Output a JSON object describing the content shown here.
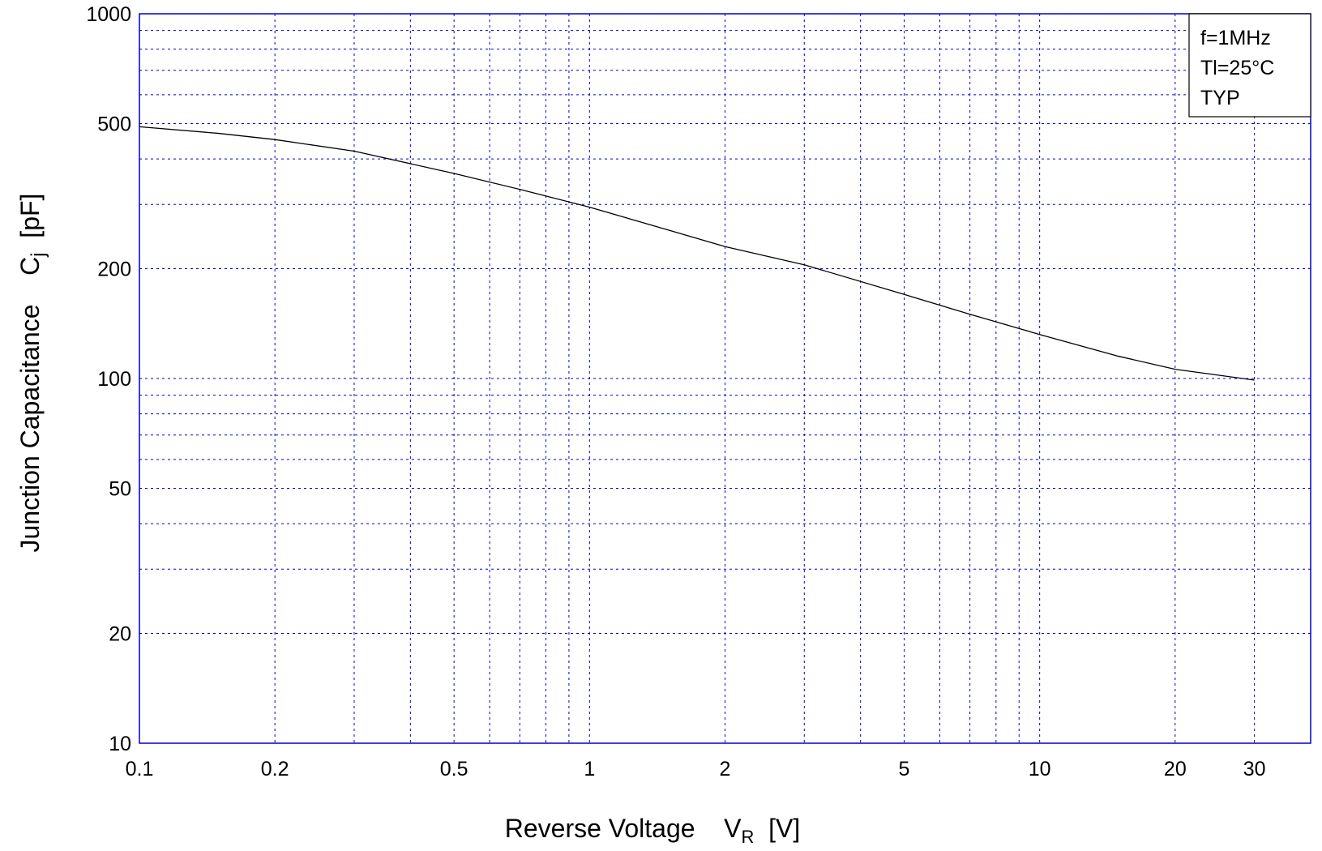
{
  "chart_data": {
    "type": "line",
    "x_scale": "log",
    "y_scale": "log",
    "xlim": [
      0.1,
      40
    ],
    "ylim": [
      10,
      1000
    ],
    "x_ticks": [
      {
        "value": 0.1,
        "label": "0.1"
      },
      {
        "value": 0.2,
        "label": "0.2"
      },
      {
        "value": 0.5,
        "label": "0.5"
      },
      {
        "value": 1,
        "label": "1"
      },
      {
        "value": 2,
        "label": "2"
      },
      {
        "value": 5,
        "label": "5"
      },
      {
        "value": 10,
        "label": "10"
      },
      {
        "value": 20,
        "label": "20"
      },
      {
        "value": 30,
        "label": "30"
      }
    ],
    "y_ticks": [
      {
        "value": 10,
        "label": "10"
      },
      {
        "value": 20,
        "label": "20"
      },
      {
        "value": 50,
        "label": "50"
      },
      {
        "value": 100,
        "label": "100"
      },
      {
        "value": 200,
        "label": "200"
      },
      {
        "value": 500,
        "label": "500"
      },
      {
        "value": 1000,
        "label": "1000"
      }
    ],
    "grid": true,
    "grid_color": "#0000cc",
    "axis_color": "#0000cc",
    "x_label_main": "Reverse Voltage    V",
    "x_label_sub": "R",
    "x_label_unit": "  [V]",
    "y_label_main": "Junction Capacitance    C",
    "y_label_sub": "j",
    "y_label_unit": "  [pF]",
    "annotation_lines": [
      "f=1MHz",
      "Tl=25°C",
      "TYP"
    ],
    "legend_position": "top-right",
    "series": [
      {
        "color": "#000000",
        "x": [
          0.1,
          0.15,
          0.2,
          0.3,
          0.5,
          0.7,
          1,
          1.5,
          2,
          3,
          5,
          7,
          10,
          15,
          20,
          30
        ],
        "y": [
          490,
          470,
          452,
          420,
          365,
          330,
          295,
          255,
          230,
          205,
          170,
          150,
          132,
          115,
          106,
          99
        ]
      }
    ]
  }
}
